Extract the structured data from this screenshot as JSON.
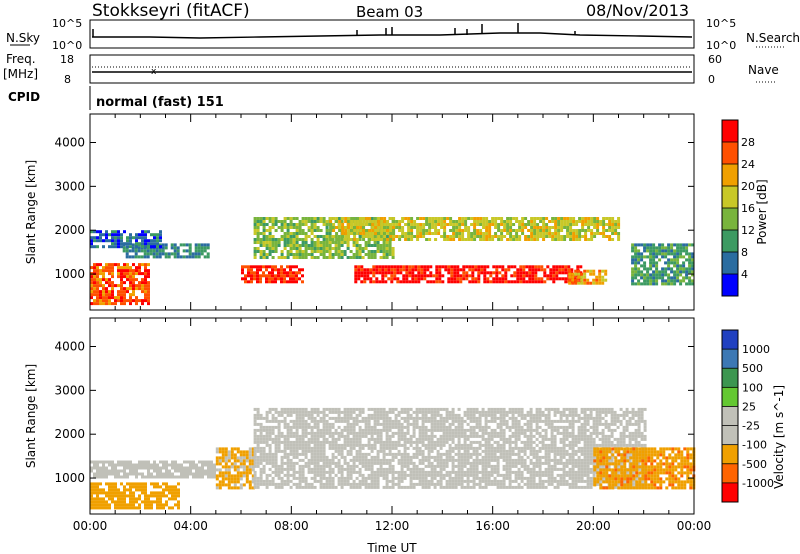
{
  "header": {
    "station": "Stokkseyri (fitACF)",
    "beam": "Beam 03",
    "date": "08/Nov/2013"
  },
  "strip_panels": {
    "noise": {
      "left_label": "N.Sky",
      "right_label": "N.Search",
      "left_ticks": [
        "10^5",
        "10^0"
      ],
      "right_ticks": [
        "10^5",
        "10^0"
      ]
    },
    "freq": {
      "left_label_1": "Freq.",
      "left_label_2": "[MHz]",
      "left_ticks": [
        "18",
        "8"
      ],
      "right_label": "Nave",
      "right_ticks": [
        "60",
        "0"
      ]
    },
    "cpid": {
      "label": "CPID",
      "text": "normal (fast) 151"
    }
  },
  "colors": {
    "power_scale": [
      "#0000ff",
      "#2a6ca0",
      "#3c9a62",
      "#78b43c",
      "#c8c828",
      "#f0a000",
      "#ff5000",
      "#ff0000"
    ],
    "velocity_scale": [
      "#2040c0",
      "#3c78b4",
      "#3c9650",
      "#64c832",
      "#c0c0b8",
      "#c0c0b8",
      "#f0a000",
      "#ff6400",
      "#ff0000"
    ]
  },
  "chart_data": [
    {
      "type": "heatmap",
      "name": "power",
      "xlabel": "",
      "ylabel": "Slant Range [km]",
      "xlim": [
        0,
        24
      ],
      "ylim": [
        180,
        4650
      ],
      "yticks": [
        1000,
        2000,
        3000,
        4000
      ],
      "colorbar": {
        "label": "Power [dB]",
        "ticks": [
          "4",
          "8",
          "12",
          "16",
          "20",
          "24",
          "28"
        ],
        "range": [
          0,
          32
        ]
      },
      "approx_echo_regions": [
        {
          "t": [
            0.0,
            2.3
          ],
          "r": [
            300,
            1250
          ],
          "value_db": 26
        },
        {
          "t": [
            1.3,
            4.7
          ],
          "r": [
            1400,
            1700
          ],
          "value_db": 8
        },
        {
          "t": [
            0.0,
            2.8
          ],
          "r": [
            1600,
            2000
          ],
          "value_db": 6
        },
        {
          "t": [
            6.0,
            8.5
          ],
          "r": [
            800,
            1200
          ],
          "value_db": 28
        },
        {
          "t": [
            6.5,
            12.0
          ],
          "r": [
            1400,
            2300
          ],
          "value_db": 14
        },
        {
          "t": [
            10.5,
            19.5
          ],
          "r": [
            800,
            1200
          ],
          "value_db": 30
        },
        {
          "t": [
            9.5,
            21.0
          ],
          "r": [
            1800,
            2300
          ],
          "value_db": 18
        },
        {
          "t": [
            19.0,
            20.5
          ],
          "r": [
            800,
            1100
          ],
          "value_db": 22
        },
        {
          "t": [
            21.5,
            24.0
          ],
          "r": [
            800,
            1700
          ],
          "value_db": 10
        }
      ]
    },
    {
      "type": "heatmap",
      "name": "velocity",
      "xlabel": "Time UT",
      "ylabel": "Slant Range [km]",
      "xlim": [
        0,
        24
      ],
      "ylim": [
        180,
        4650
      ],
      "xticks": [
        "00:00",
        "04:00",
        "08:00",
        "12:00",
        "16:00",
        "20:00",
        "00:00"
      ],
      "yticks": [
        1000,
        2000,
        3000,
        4000
      ],
      "colorbar": {
        "label": "Velocity [m s^-1]",
        "ticks": [
          "1000",
          "500",
          "100",
          "25",
          "-25",
          "-100",
          "-500",
          "-1000"
        ]
      },
      "approx_echo_regions": [
        {
          "t": [
            0.0,
            3.5
          ],
          "r": [
            300,
            900
          ],
          "value_ms": -300
        },
        {
          "t": [
            0.0,
            5.0
          ],
          "r": [
            1000,
            1400
          ],
          "value_ms": 0
        },
        {
          "t": [
            5.0,
            6.5
          ],
          "r": [
            800,
            1700
          ],
          "value_ms": -150
        },
        {
          "t": [
            6.5,
            22.0
          ],
          "r": [
            800,
            2600
          ],
          "value_ms": 0
        },
        {
          "t": [
            20.0,
            24.0
          ],
          "r": [
            800,
            1700
          ],
          "value_ms": -400
        }
      ]
    }
  ]
}
